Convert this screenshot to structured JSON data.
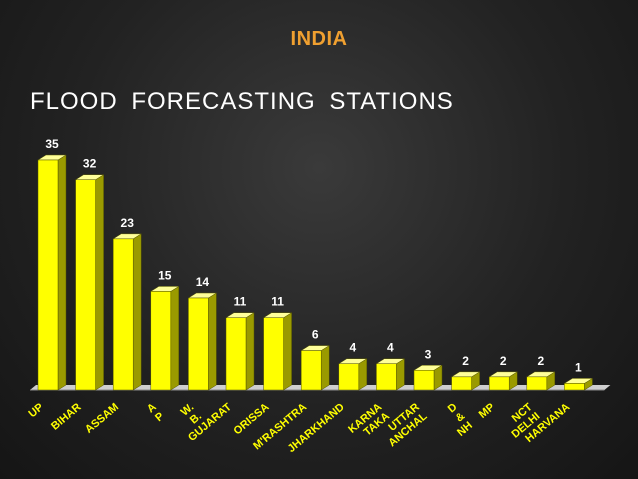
{
  "slide": {
    "title": "INDIA"
  },
  "chart_data": {
    "type": "bar",
    "title": "FLOOD  FORECASTING  STATIONS",
    "categories": [
      "UP",
      "BIHAR",
      "ASSAM",
      "A P",
      "W. B.",
      "GUJARAT",
      "ORISSA",
      "M'RASHTRA",
      "JHARKHAND",
      "KARNA TAKA",
      "UTTAR ANCHAL",
      "D & NH",
      "MP",
      "NCT DELHI",
      "HARVANA"
    ],
    "values": [
      35,
      32,
      23,
      15,
      14,
      11,
      11,
      6,
      4,
      4,
      3,
      2,
      2,
      2,
      1
    ],
    "xlabel": "",
    "ylabel": "",
    "ylim": [
      0,
      35
    ],
    "grid": false,
    "legend": "none",
    "colors": {
      "bar_front": "#ffff00",
      "bar_side": "#9a9a00",
      "bar_top": "#ffff99",
      "labels": "#ffffff",
      "categories": "#ffff00"
    }
  }
}
